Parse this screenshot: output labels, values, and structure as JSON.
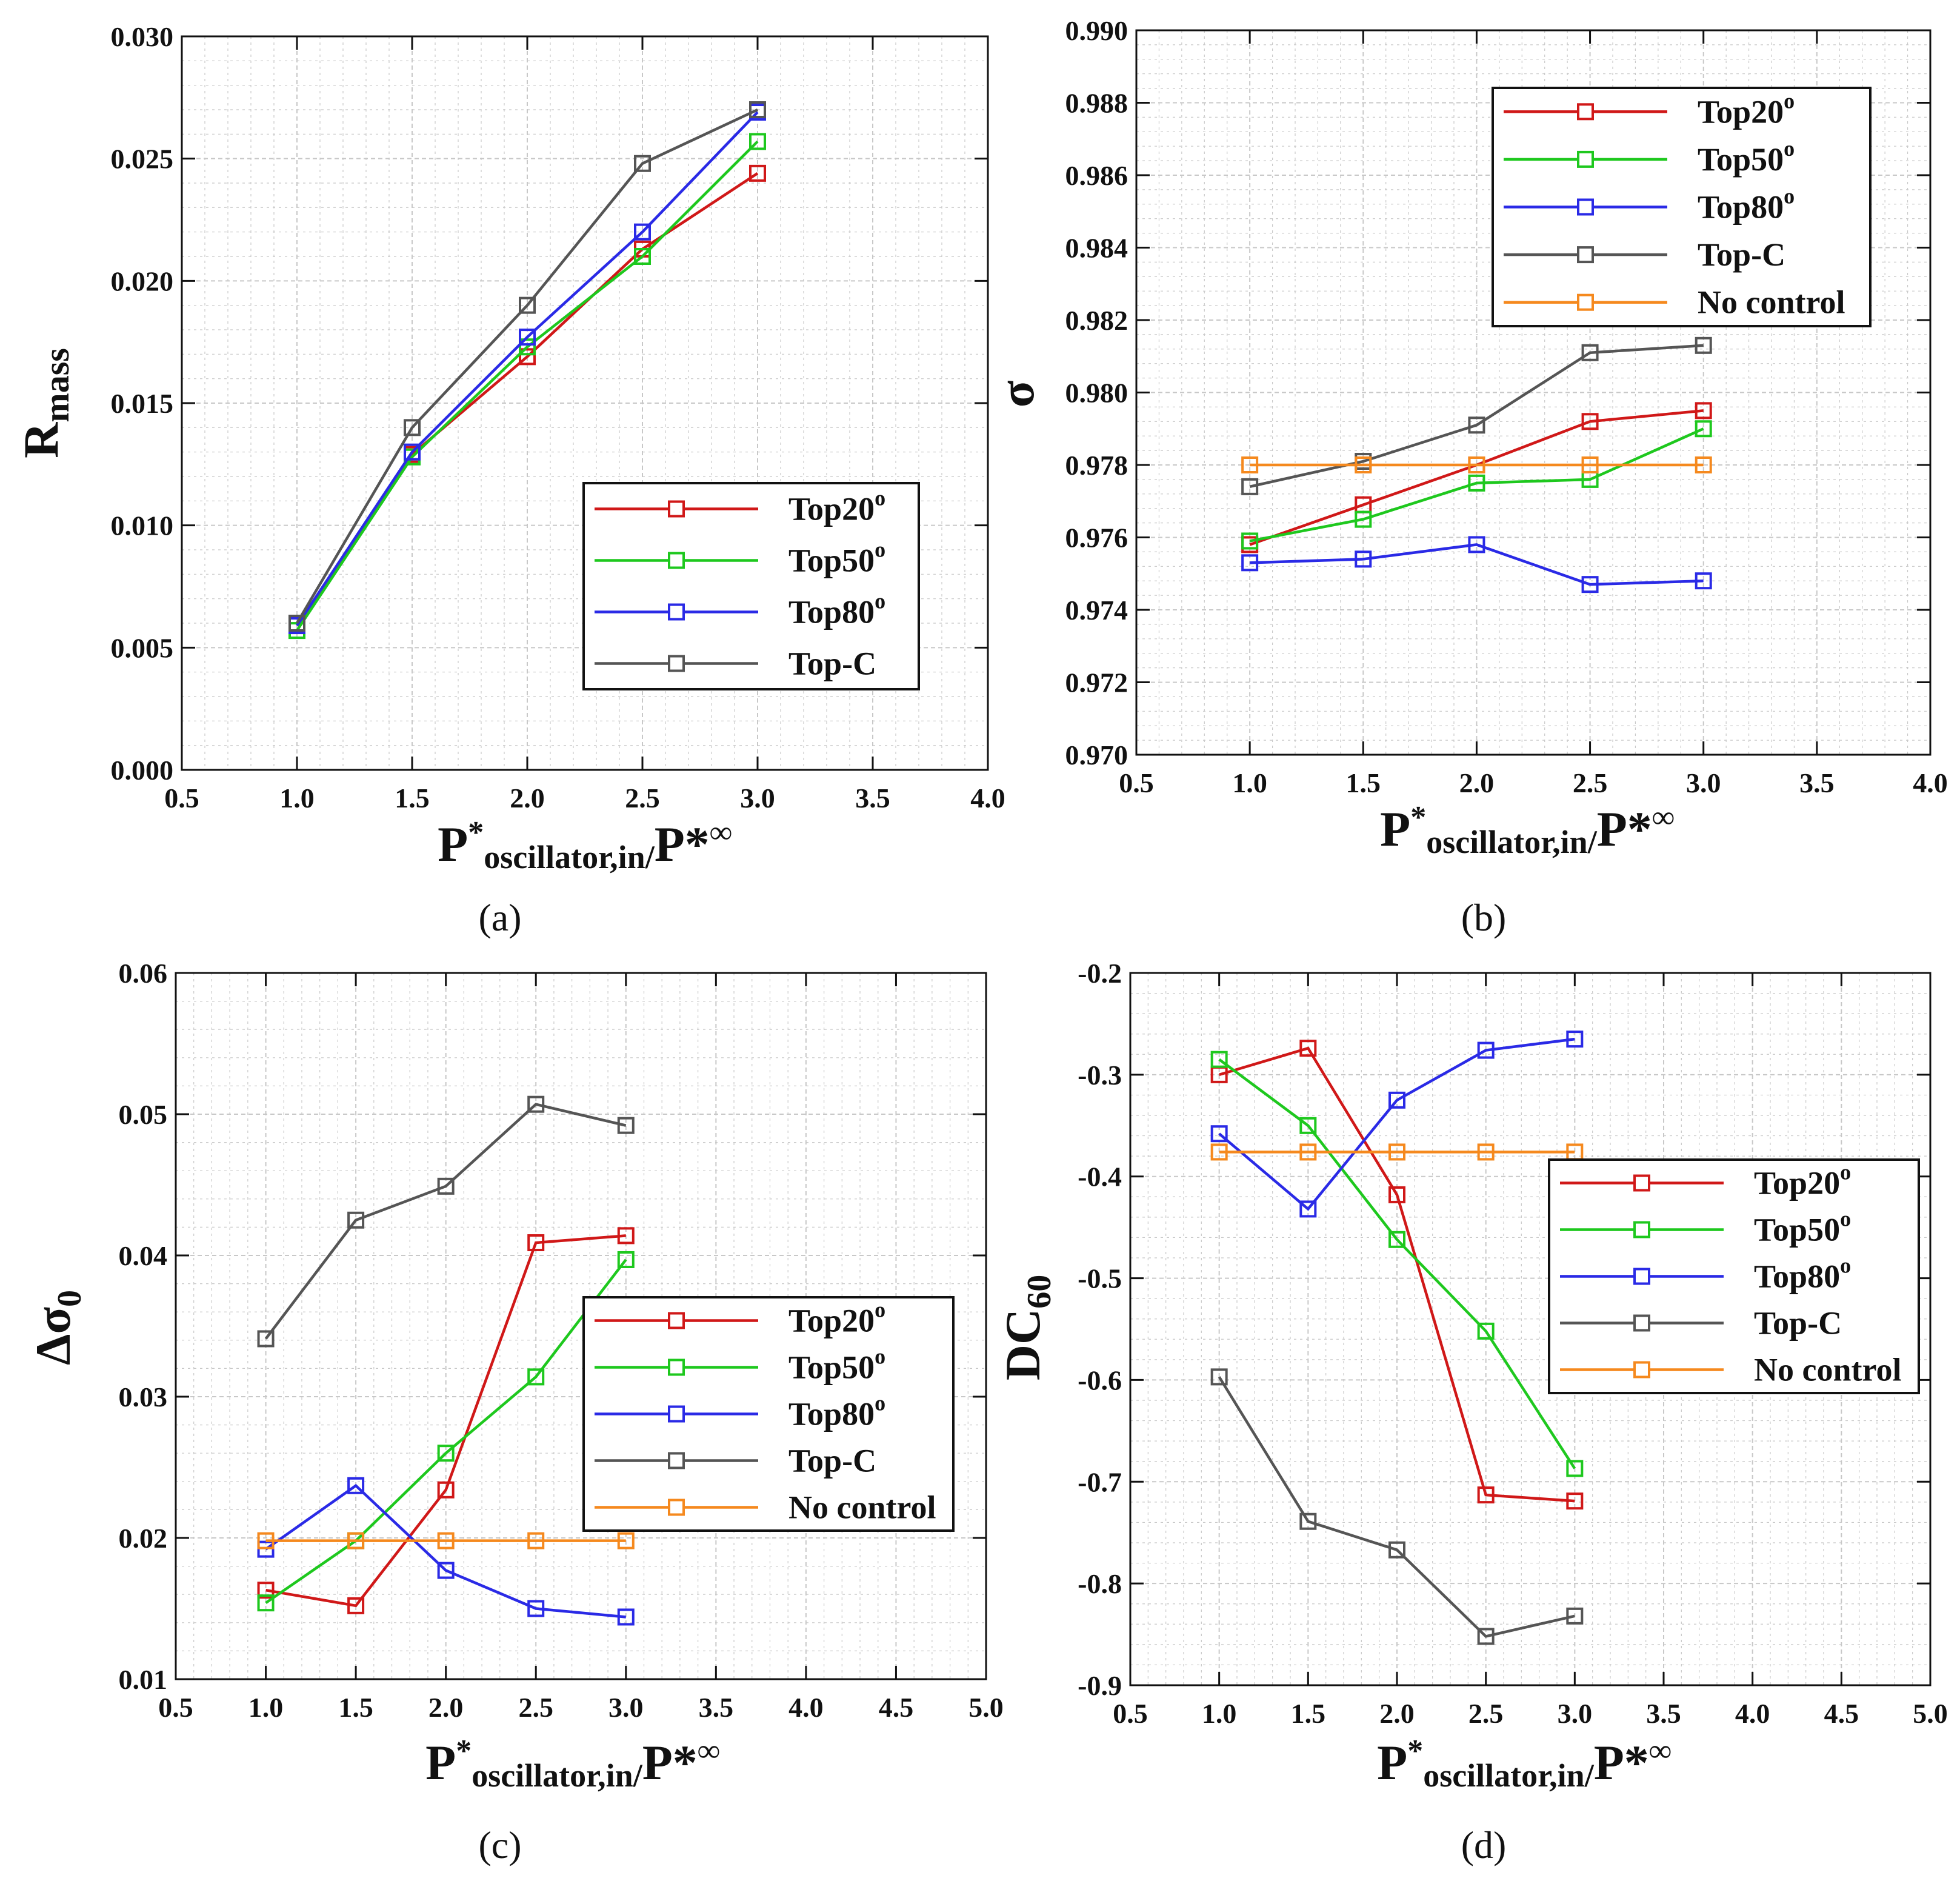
{
  "colors": {
    "Top20°": "#d01818",
    "Top50°": "#1ec81e",
    "Top80°": "#2a2ae6",
    "Top-C": "#555555",
    "No control": "#f5891e",
    "grid": "#c8c8c8",
    "axis": "#111111"
  },
  "chart_data": [
    {
      "id": "a",
      "type": "line",
      "caption": "(a)",
      "xlabel": "P*oscillator,in/P*∞",
      "ylabel": "Rmass",
      "xlim": [
        0.5,
        4.0
      ],
      "ylim": [
        0.0,
        0.03
      ],
      "xticks": [
        0.5,
        1.0,
        1.5,
        2.0,
        2.5,
        3.0,
        3.5,
        4.0
      ],
      "xtick_labels": [
        "0.5",
        "1.0",
        "1.5",
        "2.0",
        "2.5",
        "3.0",
        "3.5",
        "4.0"
      ],
      "yticks": [
        0.0,
        0.005,
        0.01,
        0.015,
        0.02,
        0.025,
        0.03
      ],
      "ytick_labels": [
        "0.000",
        "0.005",
        "0.010",
        "0.015",
        "0.020",
        "0.025",
        "0.030"
      ],
      "grid": true,
      "legend_position": "lower-right",
      "series": [
        {
          "name": "Top20°",
          "x": [
            1.0,
            1.5,
            2.0,
            2.5,
            3.0
          ],
          "y": [
            0.0059,
            0.0129,
            0.0169,
            0.0213,
            0.0244
          ]
        },
        {
          "name": "Top50°",
          "x": [
            1.0,
            1.5,
            2.0,
            2.5,
            3.0
          ],
          "y": [
            0.0057,
            0.0128,
            0.0173,
            0.021,
            0.0257
          ]
        },
        {
          "name": "Top80°",
          "x": [
            1.0,
            1.5,
            2.0,
            2.5,
            3.0
          ],
          "y": [
            0.0059,
            0.013,
            0.0177,
            0.022,
            0.0269
          ]
        },
        {
          "name": "Top-C",
          "x": [
            1.0,
            1.5,
            2.0,
            2.5,
            3.0
          ],
          "y": [
            0.006,
            0.014,
            0.019,
            0.0248,
            0.027
          ]
        }
      ]
    },
    {
      "id": "b",
      "type": "line",
      "caption": "(b)",
      "xlabel": "P*oscillator,in/P*∞",
      "ylabel": "σ",
      "xlim": [
        0.5,
        4.0
      ],
      "ylim": [
        0.97,
        0.99
      ],
      "xticks": [
        0.5,
        1.0,
        1.5,
        2.0,
        2.5,
        3.0,
        3.5,
        4.0
      ],
      "xtick_labels": [
        "0.5",
        "1.0",
        "1.5",
        "2.0",
        "2.5",
        "3.0",
        "3.5",
        "4.0"
      ],
      "yticks": [
        0.97,
        0.972,
        0.974,
        0.976,
        0.978,
        0.98,
        0.982,
        0.984,
        0.986,
        0.988,
        0.99
      ],
      "ytick_labels": [
        "0.970",
        "0.972",
        "0.974",
        "0.976",
        "0.978",
        "0.980",
        "0.982",
        "0.984",
        "0.986",
        "0.988",
        "0.990"
      ],
      "grid": true,
      "legend_position": "top-right",
      "series": [
        {
          "name": "Top20°",
          "x": [
            1.0,
            1.5,
            2.0,
            2.5,
            3.0
          ],
          "y": [
            0.9758,
            0.9769,
            0.978,
            0.9792,
            0.9795
          ]
        },
        {
          "name": "Top50°",
          "x": [
            1.0,
            1.5,
            2.0,
            2.5,
            3.0
          ],
          "y": [
            0.9759,
            0.9765,
            0.9775,
            0.9776,
            0.979
          ]
        },
        {
          "name": "Top80°",
          "x": [
            1.0,
            1.5,
            2.0,
            2.5,
            3.0
          ],
          "y": [
            0.9753,
            0.9754,
            0.9758,
            0.9747,
            0.9748
          ]
        },
        {
          "name": "Top-C",
          "x": [
            1.0,
            1.5,
            2.0,
            2.5,
            3.0
          ],
          "y": [
            0.9774,
            0.9781,
            0.9791,
            0.9811,
            0.9813
          ]
        },
        {
          "name": "No control",
          "x": [
            1.0,
            1.5,
            2.0,
            2.5,
            3.0
          ],
          "y": [
            0.978,
            0.978,
            0.978,
            0.978,
            0.978
          ]
        }
      ]
    },
    {
      "id": "c",
      "type": "line",
      "caption": "(c)",
      "xlabel": "P*oscillator,in/P*∞",
      "ylabel": "Δσ0",
      "xlim": [
        0.5,
        5.0
      ],
      "ylim": [
        0.01,
        0.06
      ],
      "xticks": [
        0.5,
        1.0,
        1.5,
        2.0,
        2.5,
        3.0,
        3.5,
        4.0,
        4.5,
        5.0
      ],
      "xtick_labels": [
        "0.5",
        "1.0",
        "1.5",
        "2.0",
        "2.5",
        "3.0",
        "3.5",
        "4.0",
        "4.5",
        "5.0"
      ],
      "yticks": [
        0.01,
        0.02,
        0.03,
        0.04,
        0.05,
        0.06
      ],
      "ytick_labels": [
        "0.01",
        "0.02",
        "0.03",
        "0.04",
        "0.05",
        "0.06"
      ],
      "grid": true,
      "legend_position": "center-right",
      "series": [
        {
          "name": "Top20°",
          "x": [
            1.0,
            1.5,
            2.0,
            2.5,
            3.0
          ],
          "y": [
            0.0163,
            0.0152,
            0.0234,
            0.0409,
            0.0414
          ]
        },
        {
          "name": "Top50°",
          "x": [
            1.0,
            1.5,
            2.0,
            2.5,
            3.0
          ],
          "y": [
            0.0154,
            0.0198,
            0.026,
            0.0314,
            0.0397
          ]
        },
        {
          "name": "Top80°",
          "x": [
            1.0,
            1.5,
            2.0,
            2.5,
            3.0
          ],
          "y": [
            0.0192,
            0.0237,
            0.0177,
            0.015,
            0.0144
          ]
        },
        {
          "name": "Top-C",
          "x": [
            1.0,
            1.5,
            2.0,
            2.5,
            3.0
          ],
          "y": [
            0.0341,
            0.0425,
            0.0449,
            0.0507,
            0.0492
          ]
        },
        {
          "name": "No control",
          "x": [
            1.0,
            1.5,
            2.0,
            2.5,
            3.0
          ],
          "y": [
            0.0198,
            0.0198,
            0.0198,
            0.0198,
            0.0198
          ]
        }
      ]
    },
    {
      "id": "d",
      "type": "line",
      "caption": "(d)",
      "xlabel": "P*oscillator,in/P*∞",
      "ylabel": "DC60",
      "xlim": [
        0.5,
        5.0
      ],
      "ylim": [
        -0.9,
        -0.2
      ],
      "xticks": [
        0.5,
        1.0,
        1.5,
        2.0,
        2.5,
        3.0,
        3.5,
        4.0,
        4.5,
        5.0
      ],
      "xtick_labels": [
        "0.5",
        "1.0",
        "1.5",
        "2.0",
        "2.5",
        "3.0",
        "3.5",
        "4.0",
        "4.5",
        "5.0"
      ],
      "yticks": [
        -0.9,
        -0.8,
        -0.7,
        -0.6,
        -0.5,
        -0.4,
        -0.3,
        -0.2
      ],
      "ytick_labels": [
        "-0.9",
        "-0.8",
        "-0.7",
        "-0.6",
        "-0.5",
        "-0.4",
        "-0.3",
        "-0.2"
      ],
      "grid": true,
      "legend_position": "center-right",
      "series": [
        {
          "name": "Top20°",
          "x": [
            1.0,
            1.5,
            2.0,
            2.5,
            3.0
          ],
          "y": [
            -0.3,
            -0.274,
            -0.418,
            -0.713,
            -0.719
          ]
        },
        {
          "name": "Top50°",
          "x": [
            1.0,
            1.5,
            2.0,
            2.5,
            3.0
          ],
          "y": [
            -0.285,
            -0.35,
            -0.462,
            -0.552,
            -0.687
          ]
        },
        {
          "name": "Top80°",
          "x": [
            1.0,
            1.5,
            2.0,
            2.5,
            3.0
          ],
          "y": [
            -0.358,
            -0.432,
            -0.325,
            -0.276,
            -0.265
          ]
        },
        {
          "name": "Top-C",
          "x": [
            1.0,
            1.5,
            2.0,
            2.5,
            3.0
          ],
          "y": [
            -0.597,
            -0.739,
            -0.767,
            -0.852,
            -0.832
          ]
        },
        {
          "name": "No control",
          "x": [
            1.0,
            1.5,
            2.0,
            2.5,
            3.0
          ],
          "y": [
            -0.376,
            -0.376,
            -0.376,
            -0.376,
            -0.376
          ]
        }
      ]
    }
  ]
}
